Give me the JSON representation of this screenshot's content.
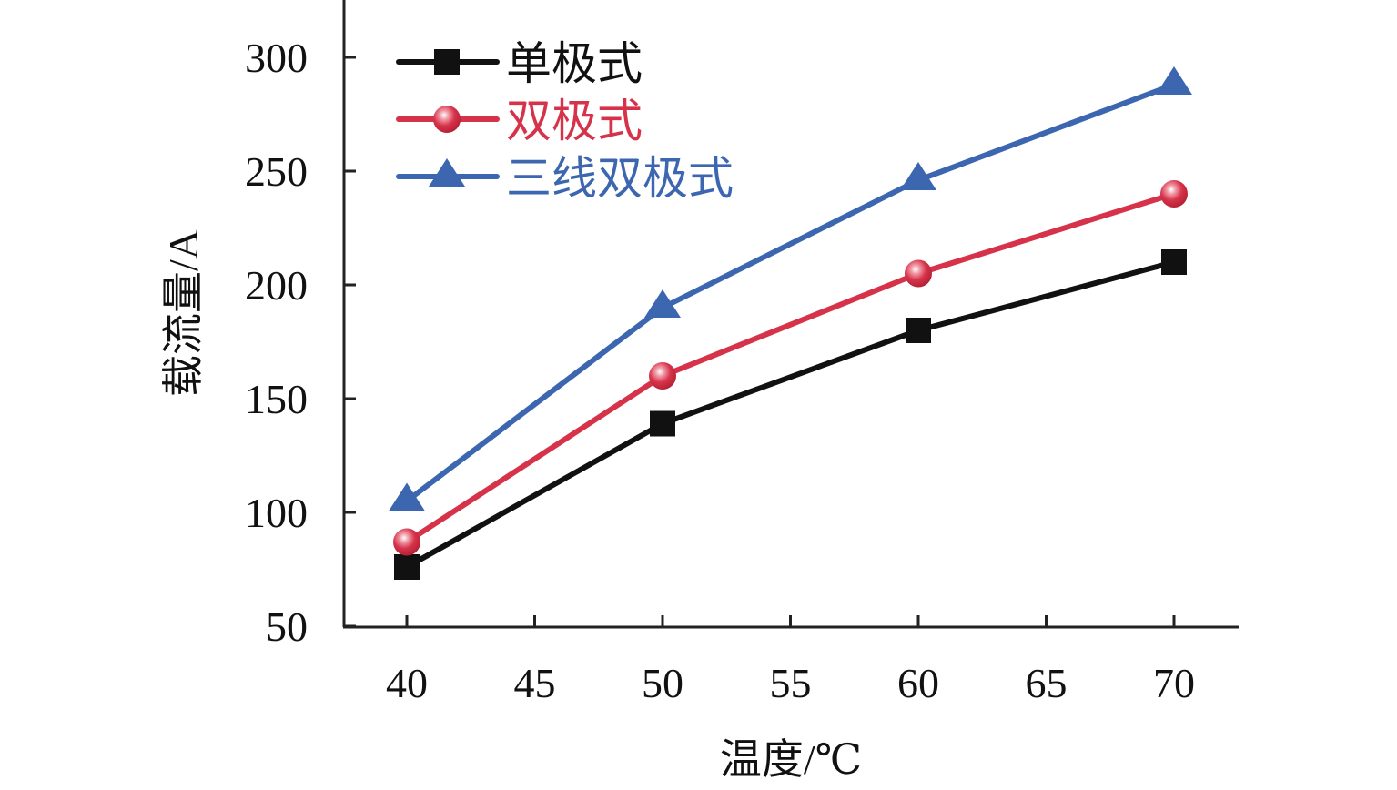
{
  "chart_data": {
    "type": "line",
    "title": "",
    "xlabel": "温度/℃",
    "ylabel": "载流量/A",
    "x": [
      40,
      50,
      60,
      70
    ],
    "xticks": [
      40,
      45,
      50,
      55,
      60,
      65,
      70
    ],
    "yticks": [
      50,
      100,
      150,
      200,
      250,
      300
    ],
    "xlim": [
      37.5,
      72.5
    ],
    "ylim": [
      50,
      325
    ],
    "grid": false,
    "legend_position": "top-left",
    "series": [
      {
        "name": "单极式",
        "values": [
          76,
          139,
          180,
          210
        ],
        "color": "#111111",
        "marker": "square"
      },
      {
        "name": "双极式",
        "values": [
          87,
          160,
          205,
          240
        ],
        "color": "#d6334a",
        "marker": "circle"
      },
      {
        "name": "三线双极式",
        "values": [
          105,
          190,
          246,
          288
        ],
        "color": "#3d66b0",
        "marker": "triangle"
      }
    ]
  }
}
